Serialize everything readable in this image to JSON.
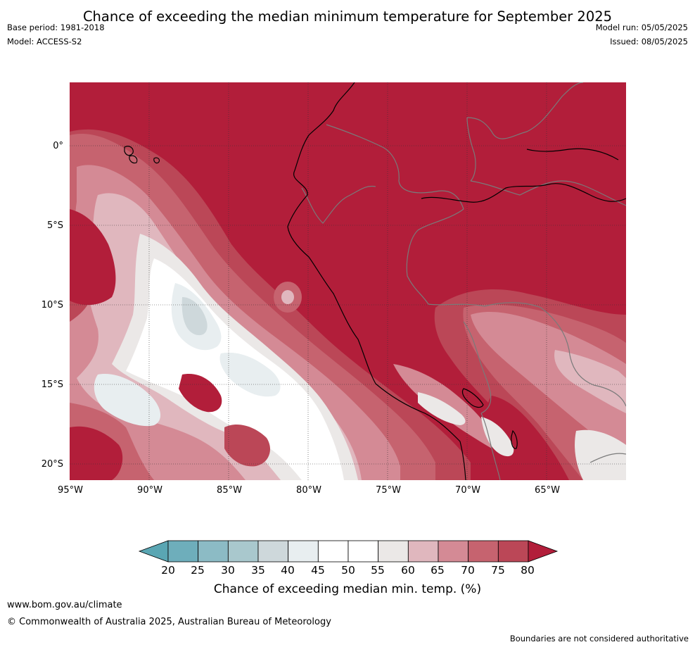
{
  "title": "Chance of exceeding the median minimum temperature for September 2025",
  "meta_left": {
    "base_period": "Base period: 1981-2018",
    "model": "Model: ACCESS-S2"
  },
  "meta_right": {
    "model_run": "Model run: 05/05/2025",
    "issued": "Issued: 08/05/2025"
  },
  "map": {
    "lat_labels": [
      "0°",
      "5°S",
      "10°S",
      "15°S",
      "20°S"
    ],
    "lon_labels": [
      "95°W",
      "90°W",
      "85°W",
      "80°W",
      "75°W",
      "70°W",
      "65°W"
    ]
  },
  "colorbar": {
    "ticks": [
      "20",
      "25",
      "30",
      "35",
      "40",
      "45",
      "50",
      "55",
      "60",
      "65",
      "70",
      "75",
      "80"
    ],
    "colors": [
      "#5aa6b3",
      "#6eaebb",
      "#8cbbc5",
      "#a9c8cd",
      "#ced8db",
      "#e8eef0",
      "#ffffff",
      "#ffffff",
      "#ebe8e7",
      "#e0b7be",
      "#d48a95",
      "#c6636f",
      "#bb4757",
      "#b21e3a"
    ],
    "label": "Chance of exceeding median min. temp. (%)"
  },
  "footer": {
    "url": "www.bom.gov.au/climate",
    "copyright": "© Commonwealth of Australia 2025, Australian Bureau of Meteorology",
    "disclaimer": "Boundaries are not considered authoritative"
  }
}
